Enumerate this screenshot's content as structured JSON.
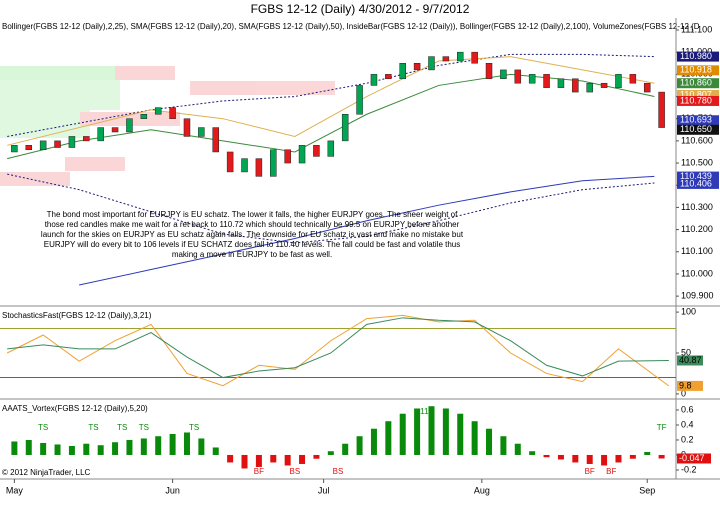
{
  "chart_data": [
    {
      "type": "candlestick",
      "title": "FGBS 12-12 (Daily)  4/30/2012 - 9/7/2012",
      "indicator_label": "Bollinger(FGBS 12-12 (Daily),2,25), SMA(FGBS 12-12 (Daily),20), SMA(FGBS 12-12 (Daily),50), InsideBar(FGBS 12-12 (Daily)), Bollinger(FGBS 12-12 (Daily),2,100), VolumeZones(FGBS 12-12 (D",
      "annotation": "The bond most important for EURJPY is EU schatz. The lower it falls, the higher EURJPY goes. The sheer weight of those red candles make me wait for a ret back to 110.72 which should technically be 99.5 on EURJPY before another launch for the skies on EURJPY as EU schatz again  falls. The downside for EU schatz is vast and make no mistake but EURJPY will do every bit to 106 levels if EU SCHATZ does fall to 110.40 levels. The fall could be fast and volatile thus making a move in EURJPY to be fast as well.",
      "up_color": "#00a651",
      "down_color": "#e31a1c",
      "xlim": [
        -1,
        93
      ],
      "x": [
        1,
        3,
        5,
        7,
        9,
        11,
        13,
        15,
        17,
        19,
        21,
        23,
        25,
        27,
        29,
        31,
        33,
        35,
        37,
        39,
        41,
        43,
        45,
        47,
        49,
        51,
        53,
        55,
        57,
        59,
        61,
        63,
        65,
        67,
        69,
        71,
        73,
        75,
        77,
        79,
        81,
        83,
        85,
        87,
        89,
        91
      ],
      "open": [
        110.55,
        110.58,
        110.56,
        110.6,
        110.57,
        110.62,
        110.6,
        110.66,
        110.64,
        110.7,
        110.72,
        110.75,
        110.7,
        110.62,
        110.66,
        110.55,
        110.46,
        110.52,
        110.44,
        110.56,
        110.5,
        110.58,
        110.53,
        110.6,
        110.72,
        110.85,
        110.9,
        110.88,
        110.95,
        110.92,
        110.98,
        110.96,
        111.0,
        110.95,
        110.88,
        110.92,
        110.86,
        110.9,
        110.84,
        110.88,
        110.82,
        110.86,
        110.84,
        110.9,
        110.86,
        110.82
      ],
      "close": [
        110.58,
        110.56,
        110.6,
        110.57,
        110.62,
        110.6,
        110.66,
        110.64,
        110.7,
        110.72,
        110.75,
        110.7,
        110.62,
        110.66,
        110.55,
        110.46,
        110.52,
        110.44,
        110.56,
        110.5,
        110.58,
        110.53,
        110.6,
        110.72,
        110.85,
        110.9,
        110.88,
        110.95,
        110.92,
        110.98,
        110.96,
        111.0,
        110.95,
        110.88,
        110.92,
        110.86,
        110.9,
        110.84,
        110.88,
        110.82,
        110.86,
        110.84,
        110.9,
        110.86,
        110.82,
        110.66
      ],
      "overlay_x": [
        0,
        10,
        20,
        30,
        40,
        50,
        60,
        70,
        80,
        90
      ],
      "overlays": [
        {
          "color": "#1a1a7a",
          "dash": true,
          "values": [
            110.62,
            110.68,
            110.74,
            110.78,
            110.8,
            110.86,
            110.94,
            110.99,
            110.99,
            110.98
          ]
        },
        {
          "color": "#1a1a7a",
          "dash": true,
          "values": [
            110.45,
            110.38,
            110.28,
            110.18,
            110.14,
            110.17,
            110.24,
            110.32,
            110.38,
            110.41
          ]
        },
        {
          "color": "#2e3ab8",
          "dash": false,
          "values": [
            null,
            109.95,
            110.02,
            110.09,
            110.16,
            110.24,
            110.31,
            110.37,
            110.42,
            110.44
          ]
        },
        {
          "color": "#3a8a3a",
          "dash": false,
          "values": [
            110.52,
            110.6,
            110.65,
            110.6,
            110.55,
            110.72,
            110.85,
            110.9,
            110.87,
            110.8
          ]
        },
        {
          "color": "#e0b050",
          "dash": false,
          "values": [
            110.58,
            110.66,
            110.74,
            110.7,
            110.62,
            110.8,
            110.96,
            110.98,
            110.92,
            110.86
          ]
        }
      ],
      "ylim": [
        109.86,
        111.145
      ],
      "yticks": [
        {
          "value": 109.9,
          "label": "109.900"
        },
        {
          "value": 110.0,
          "label": "110.000"
        },
        {
          "value": 110.1,
          "label": "110.100"
        },
        {
          "value": 110.2,
          "label": "110.200"
        },
        {
          "value": 110.3,
          "label": "110.300"
        },
        {
          "value": 110.4,
          "label": "110.400"
        },
        {
          "value": 110.5,
          "label": "110.500"
        },
        {
          "value": 110.6,
          "label": "110.600"
        },
        {
          "value": 110.7,
          "label": "110.700"
        },
        {
          "value": 110.8,
          "label": "110.800"
        },
        {
          "value": 110.9,
          "label": "110.900"
        },
        {
          "value": 111.0,
          "label": "111.000"
        },
        {
          "value": 111.1,
          "label": "111.100"
        }
      ],
      "price_labels": [
        {
          "value": 110.98,
          "label": "110.980",
          "color": "#1a1a7a"
        },
        {
          "value": 110.918,
          "label": "110.918",
          "color": "#e08a00"
        },
        {
          "value": 110.86,
          "label": "110.860",
          "color": "#3a8a3a"
        },
        {
          "value": 110.807,
          "label": "110.807",
          "color": "#e0b050"
        },
        {
          "value": 110.78,
          "label": "110.780",
          "color": "#e31a1c"
        },
        {
          "value": 110.693,
          "label": "110.693",
          "color": "#2e3ab8"
        },
        {
          "value": 110.65,
          "label": "110.650",
          "color": "#111111"
        },
        {
          "value": 110.439,
          "label": "110.439",
          "color": "#2e3ab8"
        },
        {
          "value": 110.406,
          "label": "110.406",
          "color": "#2e3ab8"
        }
      ]
    },
    {
      "type": "line",
      "indicator_label": "StochasticsFast(FGBS 12-12 (Daily),3,21)",
      "xlim": [
        -1,
        93
      ],
      "x": [
        0,
        5,
        10,
        15,
        20,
        25,
        30,
        35,
        40,
        45,
        50,
        55,
        60,
        65,
        70,
        75,
        80,
        85,
        92
      ],
      "series": [
        {
          "color": "#f0a030",
          "values": [
            50,
            72,
            40,
            65,
            85,
            25,
            10,
            35,
            30,
            65,
            92,
            96,
            88,
            90,
            50,
            25,
            15,
            55,
            9.8
          ]
        },
        {
          "color": "#3a8a5a",
          "values": [
            55,
            60,
            55,
            55,
            75,
            45,
            20,
            28,
            32,
            50,
            85,
            93,
            90,
            88,
            65,
            35,
            22,
            40,
            40.87
          ]
        }
      ],
      "levels": [
        {
          "value": 80,
          "color": "#a0a030"
        },
        {
          "value": 20,
          "color": "#9040a0"
        }
      ],
      "ylim": [
        -5,
        105
      ],
      "yticks": [
        0,
        50,
        100
      ]
    },
    {
      "type": "bar",
      "indicator_label": "AAATS_Vortex(FGBS 12-12 (Daily),5,20)",
      "copyright": "© 2012 NinjaTrader, LLC",
      "pos_color": "#0a8a0a",
      "neg_color": "#e01010",
      "xlim": [
        -1,
        93
      ],
      "x": [
        1,
        3,
        5,
        7,
        9,
        11,
        13,
        15,
        17,
        19,
        21,
        23,
        25,
        27,
        29,
        31,
        33,
        35,
        37,
        39,
        41,
        43,
        45,
        47,
        49,
        51,
        53,
        55,
        57,
        59,
        61,
        63,
        65,
        67,
        69,
        71,
        73,
        75,
        77,
        79,
        81,
        83,
        85,
        87,
        89,
        91
      ],
      "values": [
        0.18,
        0.2,
        0.16,
        0.14,
        0.12,
        0.15,
        0.13,
        0.17,
        0.2,
        0.22,
        0.25,
        0.28,
        0.3,
        0.22,
        0.1,
        -0.1,
        -0.18,
        -0.16,
        -0.1,
        -0.14,
        -0.12,
        -0.05,
        0.05,
        0.15,
        0.25,
        0.35,
        0.45,
        0.55,
        0.62,
        0.65,
        0.62,
        0.55,
        0.45,
        0.35,
        0.25,
        0.15,
        0.05,
        -0.03,
        -0.06,
        -0.1,
        -0.12,
        -0.14,
        -0.1,
        -0.05,
        0.04,
        -0.047
      ],
      "signals": [
        {
          "label": "TS",
          "x": 5,
          "side": "top"
        },
        {
          "label": "TS",
          "x": 12,
          "side": "top"
        },
        {
          "label": "TS",
          "x": 16,
          "side": "top"
        },
        {
          "label": "TS",
          "x": 19,
          "side": "top"
        },
        {
          "label": "TS",
          "x": 26,
          "side": "top"
        },
        {
          "label": "BF",
          "x": 35,
          "side": "bottom"
        },
        {
          "label": "BS",
          "x": 40,
          "side": "bottom"
        },
        {
          "label": "BS",
          "x": 46,
          "side": "bottom"
        },
        {
          "label": "11",
          "x": 58,
          "side": "top"
        },
        {
          "label": "BF",
          "x": 81,
          "side": "bottom"
        },
        {
          "label": "BF",
          "x": 84,
          "side": "bottom"
        },
        {
          "label": "TF",
          "x": 91,
          "side": "top"
        }
      ],
      "ylim": [
        -0.307,
        0.733
      ],
      "yticks": [
        -0.2,
        0,
        0.2,
        0.4,
        0.6
      ],
      "xticks": [
        {
          "value": 1,
          "label": "May"
        },
        {
          "value": 23,
          "label": "Jun"
        },
        {
          "value": 44,
          "label": "Jul"
        },
        {
          "value": 66,
          "label": "Aug"
        },
        {
          "value": 89,
          "label": "Sep"
        }
      ]
    }
  ]
}
